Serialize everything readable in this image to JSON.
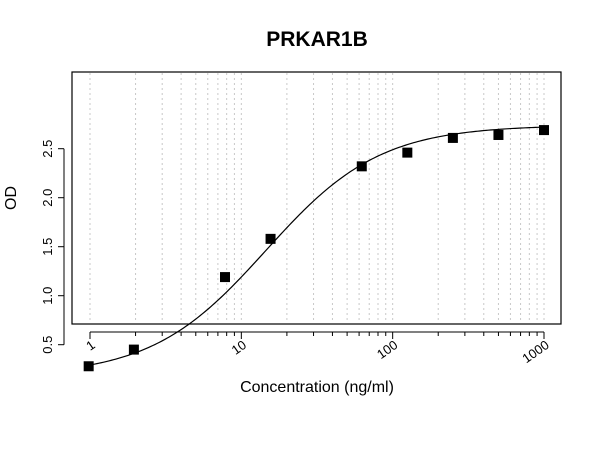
{
  "chart_data": {
    "type": "scatter",
    "title": "PRKAR1B",
    "xlabel": "Concentration (ng/ml)",
    "ylabel": "OD",
    "x_scale": "log",
    "xlim": [
      1,
      1000
    ],
    "ylim": [
      0.28,
      2.78
    ],
    "grid": true,
    "x_tick_labels": [
      "1",
      "10",
      "100",
      "1000"
    ],
    "x_tick_values": [
      1,
      10,
      100,
      1000
    ],
    "y_tick_labels": [
      "0.5",
      "1.0",
      "1.5",
      "2.0",
      "2.5"
    ],
    "y_tick_values": [
      0.5,
      1.0,
      1.5,
      2.0,
      2.5
    ],
    "series": [
      {
        "x": [
          0.98,
          1.95,
          7.8,
          15.6,
          62.5,
          125,
          250,
          500,
          1000
        ],
        "y": [
          0.28,
          0.45,
          1.19,
          1.58,
          2.32,
          2.46,
          2.61,
          2.64,
          2.69
        ]
      }
    ],
    "fit_curve": "4PL",
    "colors": {
      "points": "#000000",
      "curve": "#000000",
      "grid": "#c8c8c8"
    }
  }
}
